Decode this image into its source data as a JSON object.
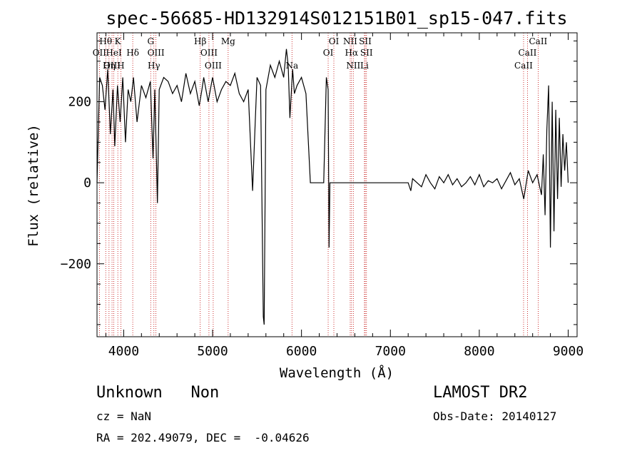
{
  "chart_data": {
    "type": "line",
    "title": "spec-56685-HD132914S012151B01_sp15-047.fits",
    "xlabel": "Wavelength (Å)",
    "ylabel": "Flux (relative)",
    "xlim": [
      3700,
      9100
    ],
    "ylim": [
      -380,
      370
    ],
    "xticks": [
      4000,
      5000,
      6000,
      7000,
      8000,
      9000
    ],
    "yticks": [
      -200,
      0,
      200
    ],
    "spectrum": {
      "x": [
        3700,
        3730,
        3760,
        3790,
        3820,
        3850,
        3880,
        3900,
        3930,
        3960,
        3990,
        4020,
        4050,
        4080,
        4110,
        4150,
        4200,
        4250,
        4300,
        4330,
        4350,
        4380,
        4400,
        4450,
        4500,
        4550,
        4600,
        4650,
        4700,
        4750,
        4800,
        4850,
        4880,
        4900,
        4950,
        5000,
        5050,
        5100,
        5150,
        5200,
        5250,
        5300,
        5350,
        5400,
        5450,
        5480,
        5500,
        5540,
        5570,
        5580,
        5600,
        5650,
        5700,
        5750,
        5800,
        5830,
        5850,
        5870,
        5900,
        5920,
        5950,
        6000,
        6050,
        6100,
        6130,
        6140,
        6180,
        6200,
        6250,
        6280,
        6300,
        6310,
        6320,
        6340,
        6360,
        6400,
        6500,
        6600,
        6700,
        6800,
        6900,
        7000,
        7100,
        7200,
        7230,
        7250,
        7300,
        7350,
        7400,
        7450,
        7500,
        7550,
        7600,
        7650,
        7700,
        7750,
        7800,
        7850,
        7900,
        7950,
        8000,
        8050,
        8100,
        8150,
        8200,
        8250,
        8300,
        8350,
        8400,
        8450,
        8500,
        8550,
        8600,
        8650,
        8700,
        8720,
        8740,
        8760,
        8780,
        8800,
        8820,
        8840,
        8860,
        8880,
        8900,
        8920,
        8940,
        8960,
        8980,
        9000
      ],
      "y": [
        0,
        260,
        240,
        180,
        280,
        120,
        230,
        90,
        240,
        150,
        260,
        100,
        230,
        200,
        260,
        150,
        240,
        210,
        250,
        60,
        230,
        -50,
        230,
        260,
        250,
        220,
        240,
        200,
        270,
        220,
        250,
        190,
        230,
        260,
        200,
        260,
        200,
        230,
        250,
        240,
        270,
        220,
        200,
        230,
        -20,
        150,
        260,
        240,
        -330,
        -350,
        230,
        290,
        260,
        300,
        260,
        330,
        290,
        160,
        280,
        220,
        240,
        260,
        220,
        0,
        0,
        0,
        0,
        0,
        0,
        260,
        230,
        -160,
        0,
        0,
        0,
        0,
        0,
        0,
        0,
        0,
        0,
        0,
        0,
        0,
        -20,
        10,
        0,
        -10,
        20,
        0,
        -15,
        15,
        0,
        20,
        -5,
        10,
        -10,
        0,
        15,
        -5,
        20,
        -10,
        5,
        0,
        10,
        -15,
        5,
        25,
        -5,
        10,
        -40,
        30,
        0,
        20,
        -30,
        70,
        -80,
        130,
        240,
        -160,
        200,
        -120,
        180,
        -40,
        160,
        -10,
        120,
        30,
        100,
        0
      ]
    },
    "lines": [
      {
        "label": "Hθ",
        "x": 3798,
        "row": 1
      },
      {
        "label": "K",
        "x": 3934,
        "row": 1
      },
      {
        "label": "G",
        "x": 4304,
        "row": 1
      },
      {
        "label": "Hβ",
        "x": 4861,
        "row": 1
      },
      {
        "label": "Mg",
        "x": 5175,
        "row": 1
      },
      {
        "label": "OI",
        "x": 6300,
        "row": 2
      },
      {
        "label": "NII",
        "x": 6548,
        "row": 1
      },
      {
        "label": "SII",
        "x": 6717,
        "row": 1
      },
      {
        "label": "CaII",
        "x": 8662,
        "row": 1
      },
      {
        "label": "OII",
        "x": 3727,
        "row": 2
      },
      {
        "label": "HeI",
        "x": 3889,
        "row": 2
      },
      {
        "label": "Hδ",
        "x": 4102,
        "row": 2
      },
      {
        "label": "OIII",
        "x": 4363,
        "row": 2
      },
      {
        "label": "OIII",
        "x": 4959,
        "row": 2
      },
      {
        "label": "OI",
        "x": 6364,
        "row": 1
      },
      {
        "label": "Hα",
        "x": 6563,
        "row": 2
      },
      {
        "label": "SII",
        "x": 6731,
        "row": 2
      },
      {
        "label": "CaII",
        "x": 8542,
        "row": 2
      },
      {
        "label": "OIII",
        "x": 3869,
        "row": 3
      },
      {
        "label": "Hη",
        "x": 3835,
        "row": 3
      },
      {
        "label": "H",
        "x": 3968,
        "row": 3
      },
      {
        "label": "Hγ",
        "x": 4340,
        "row": 3
      },
      {
        "label": "OIII",
        "x": 5007,
        "row": 3
      },
      {
        "label": "Na",
        "x": 5893,
        "row": 3
      },
      {
        "label": "NII",
        "x": 6583,
        "row": 3
      },
      {
        "label": "Li",
        "x": 6708,
        "row": 3
      },
      {
        "label": "CaII",
        "x": 8498,
        "row": 3
      }
    ]
  },
  "info": {
    "object": "Unknown   Non",
    "survey": "LAMOST DR2",
    "cz": "cz = NaN",
    "obsdate": "Obs-Date: 20140127",
    "radec": "RA = 202.49079, DEC =  -0.04626"
  }
}
